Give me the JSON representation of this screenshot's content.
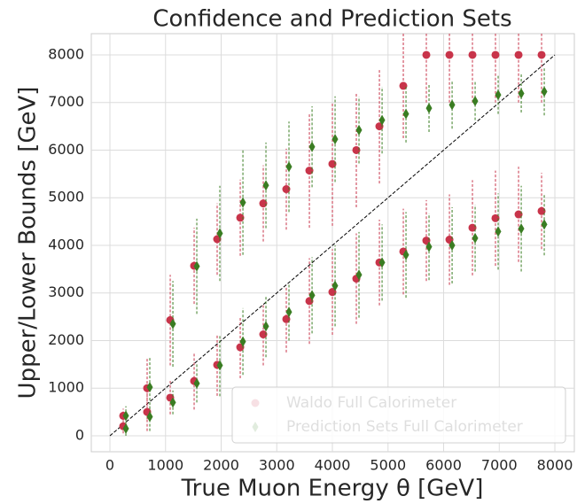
{
  "chart_data": {
    "type": "scatter",
    "title": "Confidence and Prediction Sets",
    "xlabel": "True Muon Energy θ [GeV]",
    "ylabel": "Upper/Lower Bounds [GeV]",
    "xlim": [
      -335,
      8350
    ],
    "ylim": [
      -335,
      8446
    ],
    "xticks": [
      0,
      1000,
      2000,
      3000,
      4000,
      5000,
      6000,
      7000,
      8000
    ],
    "yticks": [
      0,
      1000,
      2000,
      3000,
      4000,
      5000,
      6000,
      7000,
      8000
    ],
    "grid": true,
    "legend": "lower right",
    "series": [
      {
        "name": "Waldo Full Calorimeter",
        "color": "#c8344a",
        "marker": "circle",
        "x": [
          239,
          669,
          1084,
          1514,
          1928,
          2343,
          2757,
          3171,
          3586,
          4000,
          4430,
          4845,
          5275,
          5689,
          6104,
          6518,
          6932,
          7347,
          7761
        ],
        "upper": [
          420,
          1000,
          2430,
          3570,
          4130,
          4580,
          4880,
          5180,
          5570,
          5710,
          6000,
          6500,
          7350,
          8000,
          8000,
          8000,
          8000,
          8000,
          8000
        ],
        "upper_err": [
          150,
          650,
          950,
          800,
          750,
          800,
          800,
          850,
          1200,
          1300,
          1200,
          1200,
          1100,
          1000,
          1000,
          1000,
          1000,
          1000,
          1000
        ],
        "lower": [
          200,
          500,
          800,
          1150,
          1490,
          1860,
          2130,
          2450,
          2830,
          3020,
          3300,
          3640,
          3870,
          4100,
          4120,
          4370,
          4570,
          4650,
          4720
        ],
        "lower_err": [
          150,
          400,
          350,
          600,
          650,
          650,
          650,
          700,
          900,
          900,
          950,
          900,
          900,
          850,
          950,
          1000,
          1000,
          1000,
          800
        ]
      },
      {
        "name": "Prediction Sets Full Calorimeter",
        "color": "#3a7d22",
        "marker": "diamond",
        "x": [
          287,
          717,
          1132,
          1562,
          1976,
          2391,
          2805,
          3219,
          3634,
          4048,
          4478,
          4893,
          5323,
          5737,
          6152,
          6566,
          6980,
          7395,
          7809
        ],
        "upper": [
          420,
          1020,
          2350,
          3560,
          4250,
          4900,
          5260,
          5650,
          6070,
          6230,
          6420,
          6630,
          6760,
          6880,
          6950,
          7030,
          7160,
          7190,
          7230
        ],
        "upper_err": [
          200,
          650,
          900,
          1000,
          1000,
          1100,
          900,
          950,
          850,
          900,
          700,
          700,
          600,
          500,
          500,
          400,
          400,
          400,
          500
        ],
        "lower": [
          150,
          400,
          700,
          1100,
          1480,
          1980,
          2300,
          2600,
          2950,
          3150,
          3380,
          3640,
          3800,
          3970,
          4000,
          4150,
          4290,
          4350,
          4440
        ],
        "lower_err": [
          150,
          300,
          250,
          400,
          650,
          700,
          650,
          600,
          800,
          850,
          900,
          800,
          900,
          700,
          800,
          700,
          800,
          900,
          650
        ]
      }
    ]
  }
}
